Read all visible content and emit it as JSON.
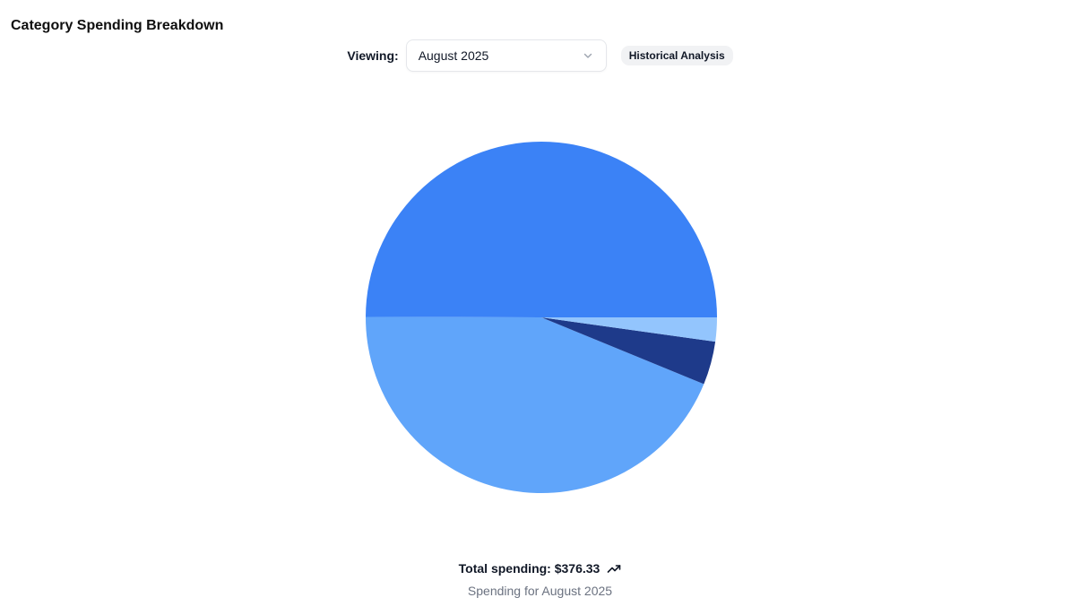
{
  "card": {
    "title": "Category Spending Breakdown"
  },
  "controls": {
    "viewing_label": "Viewing:",
    "selected_month": "August 2025",
    "historical_label": "Historical Analysis"
  },
  "footer": {
    "total_text": "Total spending: $376.33",
    "subtitle": "Spending for August 2025"
  },
  "icons": {
    "dropdown": "chevron-down-icon",
    "trend": "trending-up-icon"
  },
  "chart_data": {
    "type": "pie",
    "total": 376.33,
    "slices": [
      {
        "value": 188.0,
        "color": "#3b82f6"
      },
      {
        "value": 165.0,
        "color": "#60a5fa"
      },
      {
        "value": 15.0,
        "color": "#1e3a8a"
      },
      {
        "value": 8.33,
        "color": "#93c5fd"
      }
    ],
    "start_angle_deg": 0,
    "direction": "counterclockwise"
  }
}
